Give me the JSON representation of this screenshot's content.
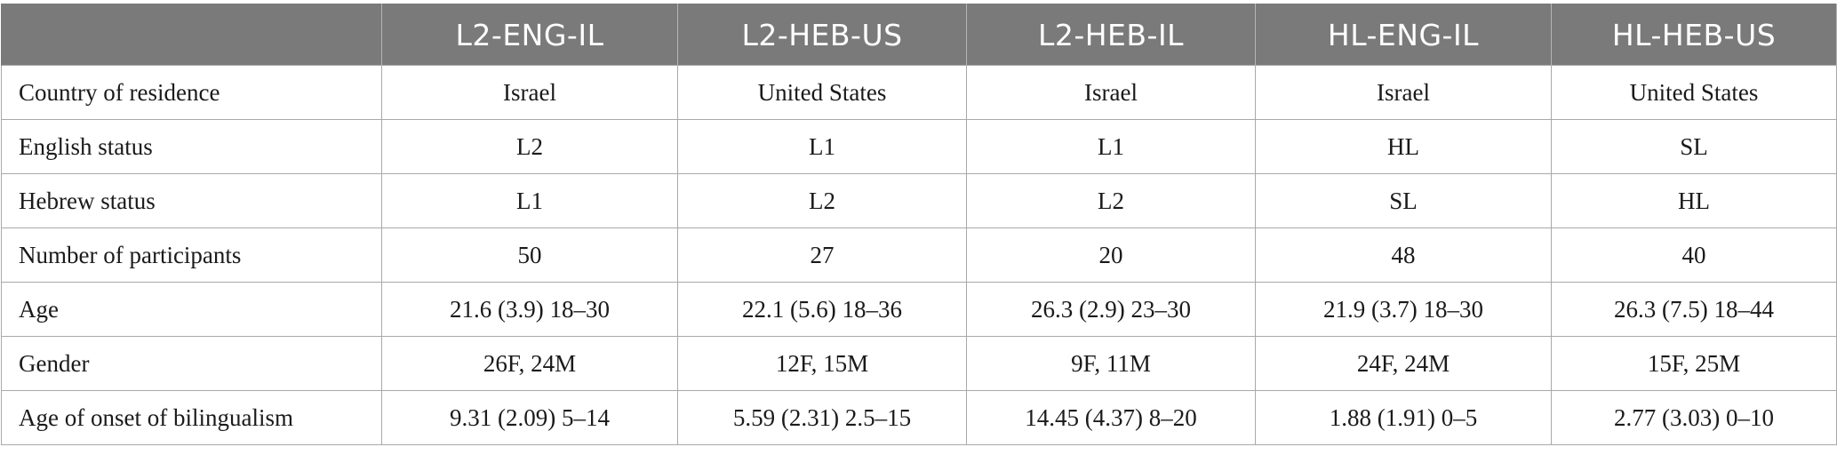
{
  "table": {
    "corner": "",
    "columns": [
      "L2-ENG-IL",
      "L2-HEB-US",
      "L2-HEB-IL",
      "HL-ENG-IL",
      "HL-HEB-US"
    ],
    "rows": [
      {
        "label": "Country of residence",
        "cells": [
          "Israel",
          "United States",
          "Israel",
          "Israel",
          "United States"
        ]
      },
      {
        "label": "English status",
        "cells": [
          "L2",
          "L1",
          "L1",
          "HL",
          "SL"
        ]
      },
      {
        "label": "Hebrew status",
        "cells": [
          "L1",
          "L2",
          "L2",
          "SL",
          "HL"
        ]
      },
      {
        "label": "Number of participants",
        "cells": [
          "50",
          "27",
          "20",
          "48",
          "40"
        ]
      },
      {
        "label": "Age",
        "cells": [
          "21.6 (3.9) 18–30",
          "22.1 (5.6) 18–36",
          "26.3 (2.9) 23–30",
          "21.9 (3.7) 18–30",
          "26.3 (7.5) 18–44"
        ]
      },
      {
        "label": "Gender",
        "cells": [
          "26F, 24M",
          "12F, 15M",
          "9F, 11M",
          "24F, 24M",
          "15F, 25M"
        ]
      },
      {
        "label": "Age of onset of bilingualism",
        "cells": [
          "9.31 (2.09) 5–14",
          "5.59 (2.31) 2.5–15",
          "14.45 (4.37) 8–20",
          "1.88 (1.91) 0–5",
          "2.77 (3.03) 0–10"
        ]
      }
    ]
  },
  "colors": {
    "header_background": "#7a7a7a",
    "header_text": "#ffffff",
    "grid_line": "#a9a9a9"
  }
}
